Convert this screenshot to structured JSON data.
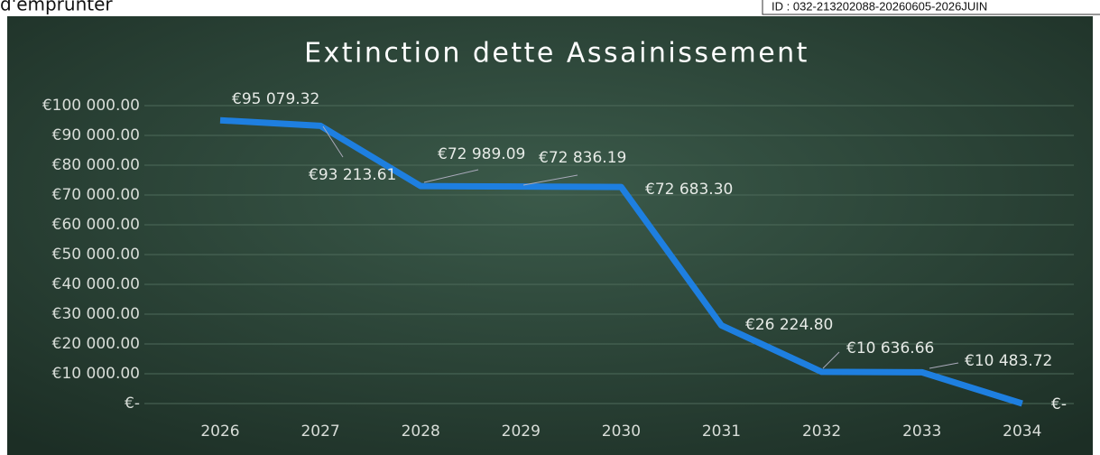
{
  "page_header": {
    "text": "d'emprunter",
    "stamp": "ID : 032-213202088-20260605-2026JUIN"
  },
  "chart_data": {
    "type": "line",
    "title": "Extinction dette Assainissement",
    "categories": [
      "2026",
      "2027",
      "2028",
      "2029",
      "2030",
      "2031",
      "2032",
      "2033",
      "2034"
    ],
    "series": [
      {
        "name": "Extinction dette Assainissement",
        "color": "#1e7fe0",
        "values": [
          95079.32,
          93213.61,
          72989.09,
          72836.19,
          72683.3,
          26224.8,
          10636.66,
          10483.72,
          0
        ],
        "value_labels": [
          "€95 079.32",
          "€93 213.61",
          "€72 989.09",
          "€72 836.19",
          "€72 683.30",
          "€26 224.80",
          "€10 636.66",
          "€10 483.72",
          "€-"
        ]
      }
    ],
    "ylim": [
      0,
      100000
    ],
    "yticks": [
      {
        "value": 0,
        "label": "€-"
      },
      {
        "value": 10000,
        "label": "€10 000.00"
      },
      {
        "value": 20000,
        "label": "€20 000.00"
      },
      {
        "value": 30000,
        "label": "€30 000.00"
      },
      {
        "value": 40000,
        "label": "€40 000.00"
      },
      {
        "value": 50000,
        "label": "€50 000.00"
      },
      {
        "value": 60000,
        "label": "€60 000.00"
      },
      {
        "value": 70000,
        "label": "€70 000.00"
      },
      {
        "value": 80000,
        "label": "€80 000.00"
      },
      {
        "value": 90000,
        "label": "€90 000.00"
      },
      {
        "value": 100000,
        "label": "€100 000.00"
      }
    ],
    "grid": true
  }
}
